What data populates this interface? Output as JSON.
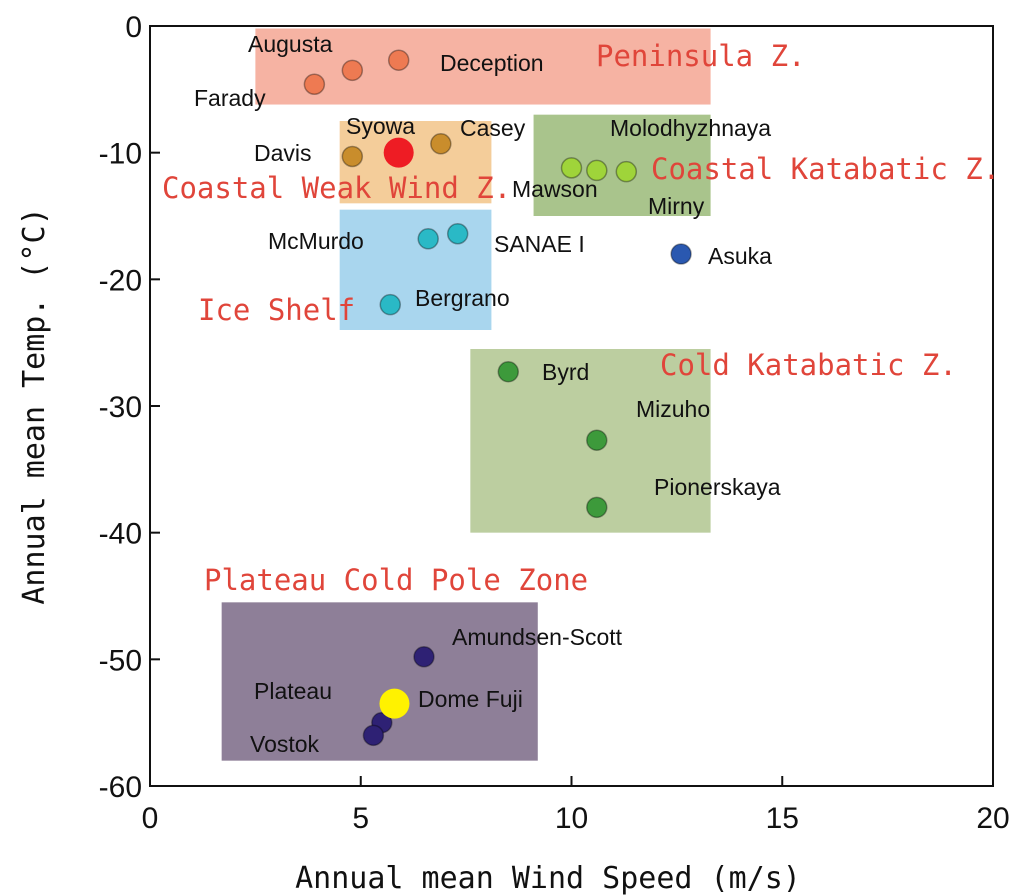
{
  "chart_data": {
    "type": "scatter",
    "xlabel": "Annual mean Wind Speed (m/s)",
    "ylabel": "Annual mean Temp. (°C)",
    "xlim": [
      0,
      20
    ],
    "ylim": [
      -60,
      0
    ],
    "xticks": [
      "0",
      "5",
      "10",
      "15",
      "20"
    ],
    "yticks": [
      "0",
      "-10",
      "-20",
      "-30",
      "-40",
      "-50",
      "-60"
    ],
    "grid": false,
    "zones": [
      {
        "label": "Peninsula Z.",
        "x0": 2.5,
        "x1": 13.3,
        "y0": -6.2,
        "y1": -0.2,
        "color": "#f6b3a3"
      },
      {
        "label": "Coastal Weak Wind Z.",
        "x0": 4.5,
        "x1": 8.1,
        "y0": -14.0,
        "y1": -7.5,
        "color": "#f4cd9a"
      },
      {
        "label": "Coastal Katabatic Z.",
        "x0": 9.1,
        "x1": 13.3,
        "y0": -15.0,
        "y1": -7.0,
        "color": "#a9c48c"
      },
      {
        "label": "Ice Shelf",
        "x0": 4.5,
        "x1": 8.1,
        "y0": -24.0,
        "y1": -14.5,
        "color": "#a9d6ee"
      },
      {
        "label": "Cold Katabatic Z.",
        "x0": 7.6,
        "x1": 13.3,
        "y0": -40.0,
        "y1": -25.5,
        "color": "#bccea0"
      },
      {
        "label": "Plateau Cold Pole Zone",
        "x0": 1.7,
        "x1": 9.2,
        "y0": -58.0,
        "y1": -45.5,
        "color": "#8e7f98"
      }
    ],
    "points": [
      {
        "name": "Augusta",
        "x": 4.8,
        "y": -3.5,
        "color": "#ee7a52"
      },
      {
        "name": "Deception",
        "x": 5.9,
        "y": -2.7,
        "color": "#ee7a52"
      },
      {
        "name": "Farady",
        "x": 3.9,
        "y": -4.6,
        "color": "#ee7a52"
      },
      {
        "name": "Syowa",
        "x": 5.9,
        "y": -10.0,
        "color": "#ee1c24"
      },
      {
        "name": "Casey",
        "x": 6.9,
        "y": -9.3,
        "color": "#c98d2c"
      },
      {
        "name": "Davis",
        "x": 4.8,
        "y": -10.3,
        "color": "#c98d2c"
      },
      {
        "name": "Molodhyzhnaya",
        "x": 10.0,
        "y": -11.2,
        "color": "#9fd43a"
      },
      {
        "name": "Mawson",
        "x": 10.6,
        "y": -11.4,
        "color": "#9fd43a"
      },
      {
        "name": "Mirny",
        "x": 11.3,
        "y": -11.5,
        "color": "#9fd43a"
      },
      {
        "name": "McMurdo",
        "x": 6.6,
        "y": -16.8,
        "color": "#2ab9c6"
      },
      {
        "name": "SANAE I",
        "x": 7.3,
        "y": -16.4,
        "color": "#2ab9c6"
      },
      {
        "name": "Bergrano",
        "x": 5.7,
        "y": -22.0,
        "color": "#2ab9c6"
      },
      {
        "name": "Asuka",
        "x": 12.6,
        "y": -18.0,
        "color": "#2a58b0"
      },
      {
        "name": "Byrd",
        "x": 8.5,
        "y": -27.3,
        "color": "#3d9a3b"
      },
      {
        "name": "Mizuho",
        "x": 10.6,
        "y": -32.7,
        "color": "#3d9a3b"
      },
      {
        "name": "Pionerskaya",
        "x": 10.6,
        "y": -38.0,
        "color": "#3d9a3b"
      },
      {
        "name": "Amundsen-Scott",
        "x": 6.5,
        "y": -49.8,
        "color": "#2e2174"
      },
      {
        "name": "Plateau",
        "x": 5.5,
        "y": -55.0,
        "color": "#2e2174"
      },
      {
        "name": "Vostok",
        "x": 5.3,
        "y": -56.0,
        "color": "#2e2174"
      },
      {
        "name": "Dome Fuji",
        "x": 5.8,
        "y": -53.5,
        "color": "#fff200"
      }
    ]
  }
}
